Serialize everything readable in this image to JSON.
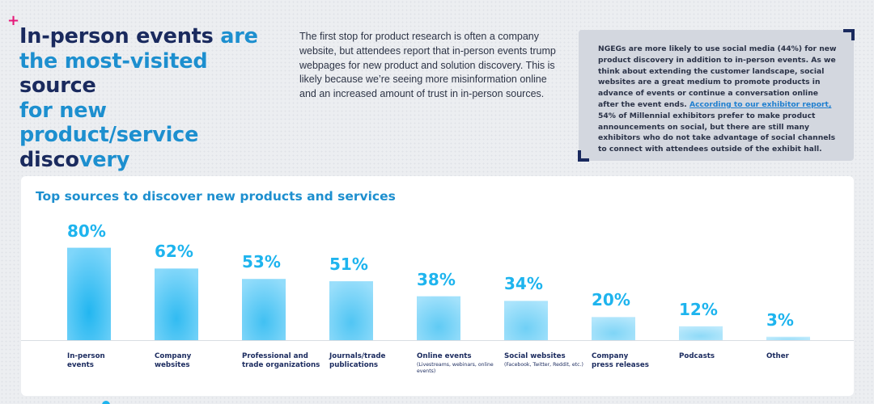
{
  "header": {
    "plus_symbol": "+",
    "headline_line1_dark": "In-person events",
    "headline_line1_blue": " are",
    "headline_line2_blue": "the most-visited ",
    "headline_line2_dark": "source",
    "headline_line3_blue": "for new product/service",
    "headline_line4_dark": "disco",
    "headline_line4_blue": "very"
  },
  "intro": {
    "text": "The first stop for product research is often a company website, but attendees report that in-person events trump webpages for new product and solution discovery. This is likely because we’re seeing more misinformation online and an increased amount of trust in in-person sources."
  },
  "callout": {
    "text_before_link": "NGEGs are more likely to use social media (44%) for new product discovery in addition to in-person events.  As we think about extending the customer landscape, social websites are a great medium to promote products in advance of events or continue a conversation online after the event ends. ",
    "link_text": "According to our exhibitor report,",
    "text_after_link": " 54% of Millennial exhibitors prefer to make product announcements on social, but there are still many exhibitors who do not take advantage of social channels to connect with attendees outside of the exhibit hall."
  },
  "colors": {
    "accent_blue": "#1eb4ee",
    "navy": "#1a2a5e",
    "brand_pink": "#e6197a"
  },
  "chart_data": {
    "type": "bar",
    "title": "Top sources to discover new products and services",
    "categories": [
      {
        "label": "In-person events",
        "lines": [
          "In-person",
          "events"
        ],
        "sub": ""
      },
      {
        "label": "Company websites",
        "lines": [
          "Company",
          "websites"
        ],
        "sub": ""
      },
      {
        "label": "Professional and trade organizations",
        "lines": [
          "Professional and",
          "trade organizations"
        ],
        "sub": ""
      },
      {
        "label": "Journals/trade publications",
        "lines": [
          "Journals/trade",
          "publications"
        ],
        "sub": ""
      },
      {
        "label": "Online events",
        "lines": [
          "Online events"
        ],
        "sub": "(Livestreams, webinars, online events)"
      },
      {
        "label": "Social websites",
        "lines": [
          "Social websites"
        ],
        "sub": "(Facebook, Twitter, Reddit, etc.)"
      },
      {
        "label": "Company press releases",
        "lines": [
          "Company",
          "press releases"
        ],
        "sub": ""
      },
      {
        "label": "Podcasts",
        "lines": [
          "Podcasts"
        ],
        "sub": ""
      },
      {
        "label": "Other",
        "lines": [
          "Other"
        ],
        "sub": ""
      }
    ],
    "values": [
      80,
      62,
      53,
      51,
      38,
      34,
      20,
      12,
      3
    ],
    "value_labels": [
      "80%",
      "62%",
      "53%",
      "51%",
      "38%",
      "34%",
      "20%",
      "12%",
      "3%"
    ],
    "unit": "%",
    "ylim": [
      0,
      100
    ],
    "xlabel": "",
    "ylabel": "",
    "grid": false
  }
}
